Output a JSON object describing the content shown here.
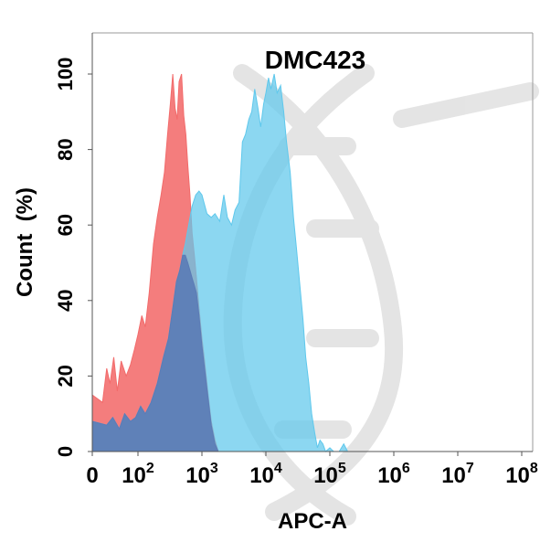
{
  "chart_data": {
    "type": "area",
    "title": "DMC423",
    "xlabel": "APC-A",
    "ylabel": "Count  (%)",
    "x_scale": "biexponential",
    "ylim": [
      0,
      100
    ],
    "y_ticks": [
      "0",
      "20",
      "40",
      "60",
      "80",
      "100"
    ],
    "x_ticks": [
      {
        "value": 0,
        "base": "0",
        "exp": ""
      },
      {
        "value": 100,
        "base": "10",
        "exp": "2"
      },
      {
        "value": 1000,
        "base": "10",
        "exp": "3"
      },
      {
        "value": 10000,
        "base": "10",
        "exp": "4"
      },
      {
        "value": 100000,
        "base": "10",
        "exp": "5"
      },
      {
        "value": 1000000,
        "base": "10",
        "exp": "6"
      },
      {
        "value": 10000000,
        "base": "10",
        "exp": "7"
      },
      {
        "value": 100000000,
        "base": "10",
        "exp": "8"
      }
    ],
    "grid": false,
    "legend": "none",
    "series": [
      {
        "color": "#f26b6b",
        "opacity": 0.88,
        "points": [
          [
            0,
            15
          ],
          [
            5,
            13
          ],
          [
            10,
            22
          ],
          [
            15,
            18
          ],
          [
            22,
            25
          ],
          [
            30,
            16
          ],
          [
            40,
            24
          ],
          [
            55,
            20
          ],
          [
            70,
            23
          ],
          [
            85,
            27
          ],
          [
            100,
            31
          ],
          [
            115,
            36
          ],
          [
            130,
            33
          ],
          [
            150,
            42
          ],
          [
            175,
            55
          ],
          [
            200,
            62
          ],
          [
            230,
            68
          ],
          [
            260,
            74
          ],
          [
            290,
            84
          ],
          [
            320,
            92
          ],
          [
            350,
            100
          ],
          [
            380,
            91
          ],
          [
            410,
            88
          ],
          [
            440,
            98
          ],
          [
            480,
            100
          ],
          [
            520,
            89
          ],
          [
            560,
            84
          ],
          [
            600,
            76
          ],
          [
            650,
            68
          ],
          [
            700,
            58
          ],
          [
            760,
            52
          ],
          [
            820,
            46
          ],
          [
            900,
            38
          ],
          [
            1000,
            30
          ],
          [
            1100,
            24
          ],
          [
            1250,
            15
          ],
          [
            1400,
            8
          ],
          [
            1600,
            3
          ],
          [
            1800,
            0
          ]
        ]
      },
      {
        "color": "#5fc8ec",
        "opacity": 0.72,
        "points": [
          [
            0,
            8
          ],
          [
            10,
            7
          ],
          [
            20,
            9
          ],
          [
            35,
            6
          ],
          [
            50,
            10
          ],
          [
            70,
            8
          ],
          [
            90,
            9
          ],
          [
            110,
            12
          ],
          [
            130,
            10
          ],
          [
            160,
            13
          ],
          [
            200,
            18
          ],
          [
            250,
            25
          ],
          [
            300,
            30
          ],
          [
            350,
            38
          ],
          [
            400,
            45
          ],
          [
            450,
            48
          ],
          [
            500,
            52
          ],
          [
            550,
            55
          ],
          [
            620,
            60
          ],
          [
            700,
            65
          ],
          [
            800,
            68
          ],
          [
            900,
            69
          ],
          [
            1000,
            68
          ],
          [
            1200,
            63
          ],
          [
            1400,
            62
          ],
          [
            1600,
            63
          ],
          [
            1900,
            61
          ],
          [
            2200,
            68
          ],
          [
            2500,
            62
          ],
          [
            2900,
            60
          ],
          [
            3300,
            64
          ],
          [
            3800,
            66
          ],
          [
            4300,
            82
          ],
          [
            4800,
            84
          ],
          [
            5400,
            88
          ],
          [
            6000,
            90
          ],
          [
            6700,
            96
          ],
          [
            7500,
            91
          ],
          [
            8300,
            86
          ],
          [
            9200,
            92
          ],
          [
            10000,
            95
          ],
          [
            11000,
            99
          ],
          [
            12000,
            96
          ],
          [
            13500,
            100
          ],
          [
            15000,
            95
          ],
          [
            17000,
            97
          ],
          [
            19000,
            90
          ],
          [
            21000,
            82
          ],
          [
            24000,
            74
          ],
          [
            27000,
            62
          ],
          [
            30000,
            54
          ],
          [
            34000,
            44
          ],
          [
            38000,
            35
          ],
          [
            42000,
            25
          ],
          [
            47000,
            18
          ],
          [
            52000,
            10
          ],
          [
            58000,
            5
          ],
          [
            64000,
            1
          ],
          [
            70000,
            3
          ],
          [
            78000,
            2
          ],
          [
            86000,
            0
          ],
          [
            100000,
            1
          ],
          [
            115000,
            0
          ],
          [
            140000,
            0
          ],
          [
            165000,
            2
          ],
          [
            190000,
            0
          ],
          [
            250000,
            0
          ]
        ]
      },
      {
        "color": "#5b7bb6",
        "opacity": 0.9,
        "points": [
          [
            0,
            8
          ],
          [
            10,
            7
          ],
          [
            20,
            9
          ],
          [
            35,
            6
          ],
          [
            50,
            10
          ],
          [
            70,
            8
          ],
          [
            90,
            9
          ],
          [
            110,
            12
          ],
          [
            130,
            10
          ],
          [
            160,
            13
          ],
          [
            200,
            18
          ],
          [
            250,
            25
          ],
          [
            300,
            30
          ],
          [
            350,
            38
          ],
          [
            400,
            45
          ],
          [
            450,
            48
          ],
          [
            500,
            52
          ],
          [
            550,
            52
          ],
          [
            600,
            50
          ],
          [
            650,
            48
          ],
          [
            700,
            46
          ],
          [
            760,
            44
          ],
          [
            820,
            42
          ],
          [
            900,
            36
          ],
          [
            1000,
            28
          ],
          [
            1100,
            22
          ],
          [
            1250,
            14
          ],
          [
            1400,
            7
          ],
          [
            1600,
            2
          ],
          [
            1800,
            0
          ]
        ]
      }
    ]
  }
}
